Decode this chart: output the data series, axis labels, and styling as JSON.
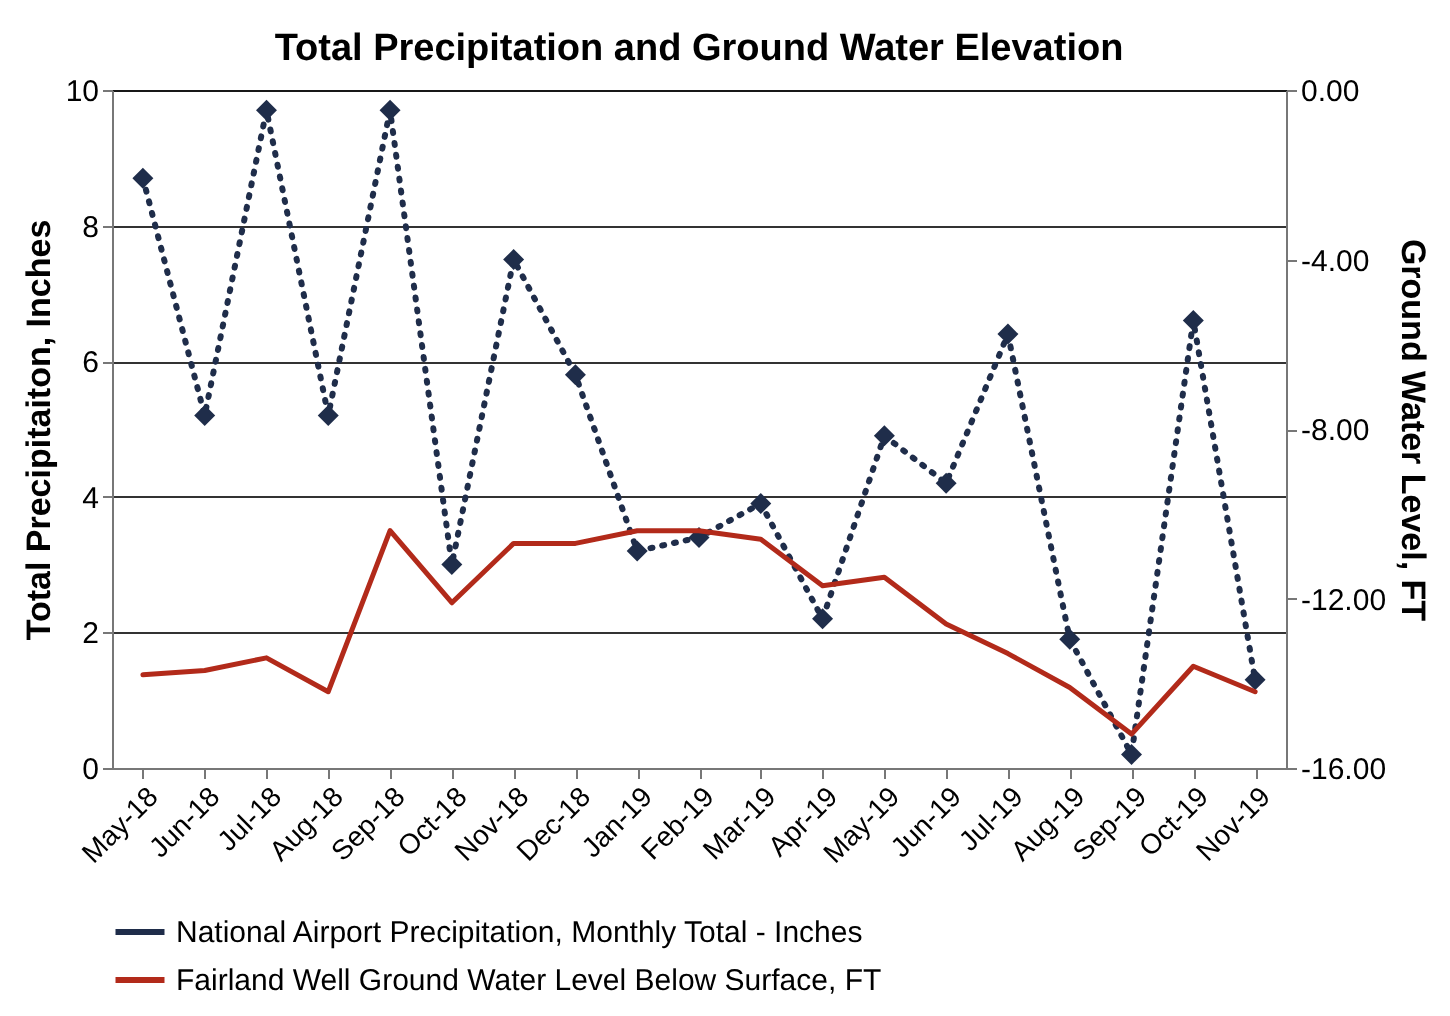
{
  "chart_data": {
    "type": "line",
    "title": "Total Precipitation and Ground Water Elevation",
    "categories": [
      "May-18",
      "Jun-18",
      "Jul-18",
      "Aug-18",
      "Sep-18",
      "Oct-18",
      "Nov-18",
      "Dec-18",
      "Jan-19",
      "Feb-19",
      "Mar-19",
      "Apr-19",
      "May-19",
      "Jun-19",
      "Jul-19",
      "Aug-19",
      "Sep-19",
      "Oct-19",
      "Nov-19"
    ],
    "series": [
      {
        "name": "National Airport Precipitation, Monthly Total - Inches",
        "color": "#1f2d4a",
        "marker": "diamond",
        "line_style": "dotted",
        "values": [
          8.7,
          5.2,
          9.7,
          5.2,
          9.7,
          3.0,
          7.5,
          5.8,
          3.2,
          3.4,
          3.9,
          2.2,
          4.9,
          4.2,
          6.4,
          1.9,
          0.2,
          6.6,
          1.3
        ]
      },
      {
        "name": "Fairland Well Ground Water Level Below Surface, FT",
        "color": "#b22a1a",
        "marker": "none",
        "line_style": "solid",
        "axis": "y2",
        "values": [
          -13.8,
          -13.7,
          -13.4,
          -14.2,
          -10.4,
          -12.1,
          -10.7,
          -10.7,
          -10.4,
          -10.4,
          -10.6,
          -11.7,
          -11.5,
          -12.6,
          -13.3,
          -14.1,
          -15.2,
          -13.6,
          -14.2
        ]
      }
    ],
    "ylabel": "Total Precipitaiton, Inches",
    "y2label": "Ground Water Level, FT",
    "ylim": [
      0,
      10
    ],
    "yticks": [
      0,
      2,
      4,
      6,
      8,
      10
    ],
    "y2lim": [
      -16,
      0
    ],
    "y2ticks": [
      {
        "value": -16,
        "label": "-16.00"
      },
      {
        "value": -12,
        "label": "-12.00"
      },
      {
        "value": -8,
        "label": "-8.00"
      },
      {
        "value": -4,
        "label": "-4.00"
      },
      {
        "value": 0,
        "label": "0.00"
      }
    ],
    "grid": "y",
    "legend": "bottom"
  }
}
